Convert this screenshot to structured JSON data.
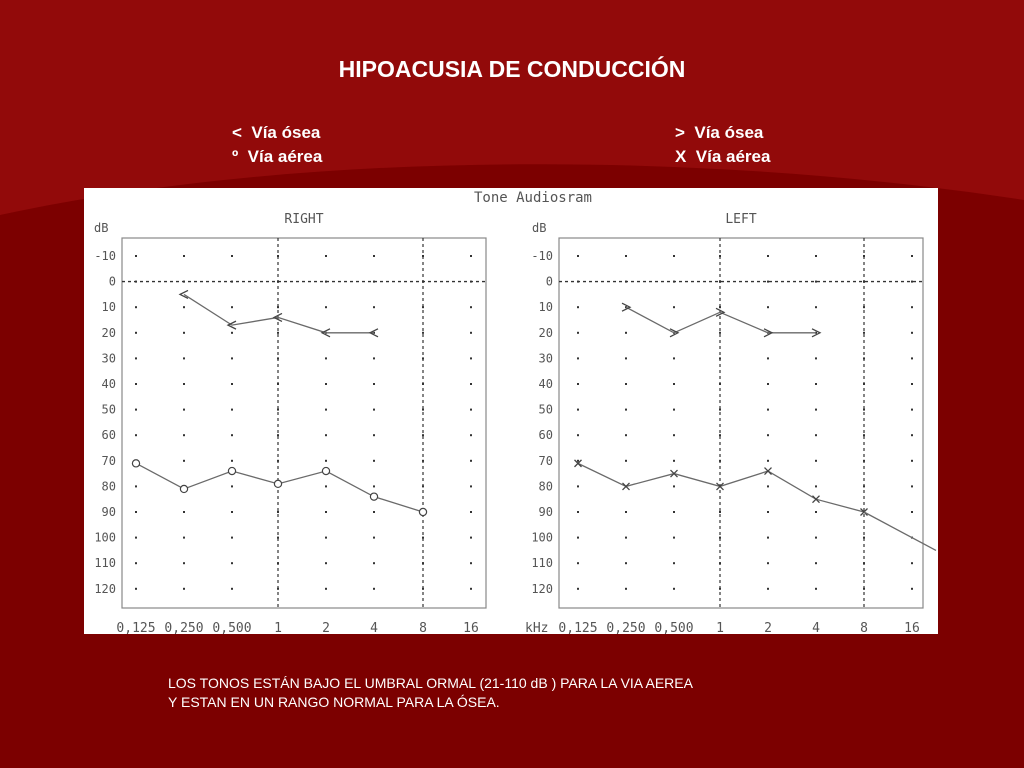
{
  "slide": {
    "title": "HIPOACUSIA DE CONDUCCIÓN",
    "legend_left": [
      "<  Vía ósea",
      "º  Vía aérea"
    ],
    "legend_right": [
      ">  Vía ósea",
      "X  Vía aérea"
    ],
    "caption": [
      "LOS TONOS ESTÁN BAJO EL UMBRAL ORMAL (21-110 dB ) PARA LA VIA AEREA",
      "Y ESTAN EN UN RANGO NORMAL PARA LA ÓSEA."
    ],
    "background_color": "#7c0000"
  },
  "chart_data": {
    "type": "line",
    "figure_title": "Tone Audiosram",
    "ylabel": "dB",
    "xunit": "kHz",
    "ylim": [
      -10,
      120
    ],
    "y_ticks": [
      "-10",
      "0",
      "10",
      "20",
      "30",
      "40",
      "50",
      "60",
      "70",
      "80",
      "90",
      "100",
      "110",
      "120"
    ],
    "x_ticks": [
      "0,125",
      "0,250",
      "0,500",
      "1",
      "2",
      "4",
      "8",
      "16"
    ],
    "panels": [
      {
        "title": "RIGHT",
        "series": [
          {
            "marker": "<",
            "x": [
              "0,250",
              "0,500",
              "1",
              "2",
              "4"
            ],
            "y": [
              5,
              17,
              14,
              20,
              20
            ]
          },
          {
            "marker": "o",
            "x": [
              "0,125",
              "0,250",
              "0,500",
              "1",
              "2",
              "4",
              "8"
            ],
            "y": [
              71,
              81,
              74,
              79,
              74,
              84,
              90
            ]
          }
        ]
      },
      {
        "title": "LEFT",
        "series": [
          {
            "marker": ">",
            "x": [
              "0,250",
              "0,500",
              "1",
              "2",
              "4"
            ],
            "y": [
              10,
              20,
              12,
              20,
              20
            ]
          },
          {
            "marker": "x",
            "x": [
              "0,125",
              "0,250",
              "0,500",
              "1",
              "2",
              "4",
              "8"
            ],
            "y": [
              71,
              80,
              75,
              80,
              74,
              85,
              90
            ]
          }
        ]
      }
    ],
    "grid": "dotted"
  }
}
